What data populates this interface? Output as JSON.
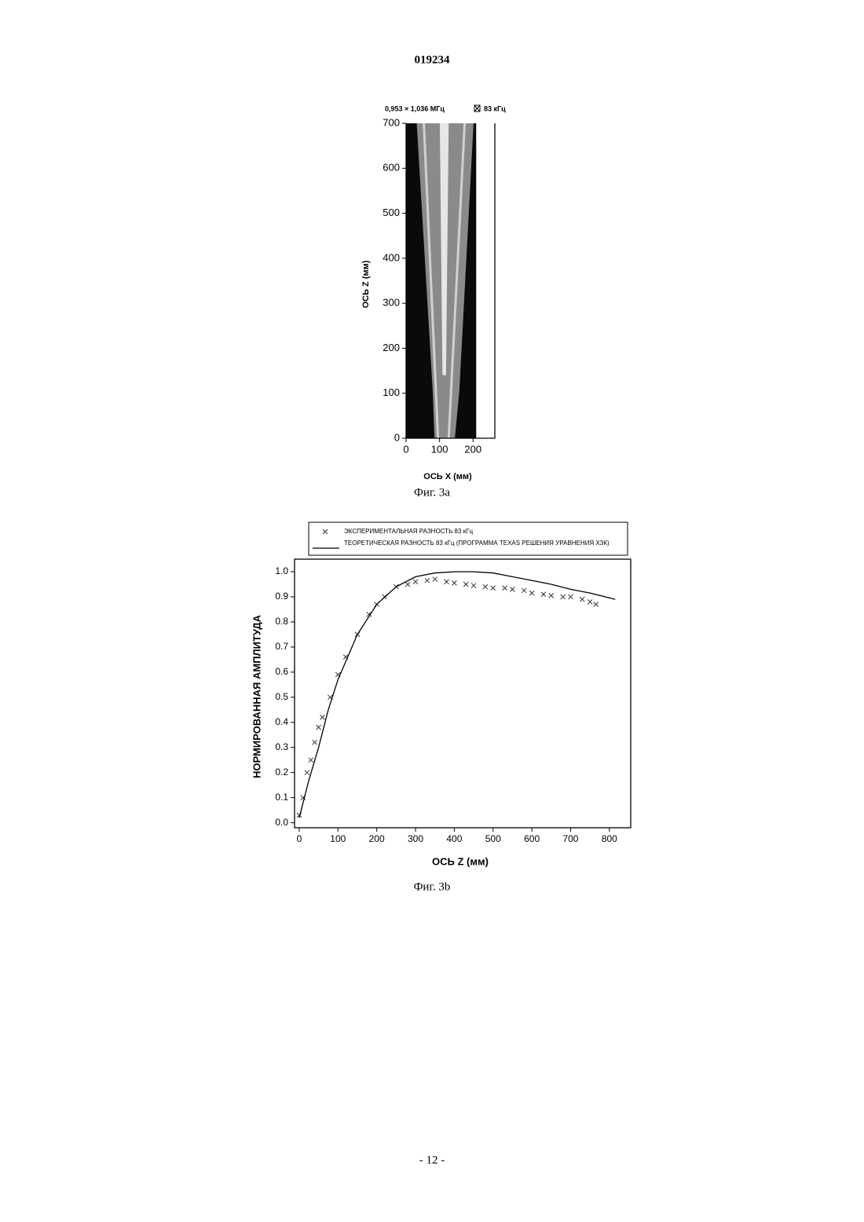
{
  "header": {
    "doc_number": "019234"
  },
  "chart_data": [
    {
      "type": "image",
      "title": "0,953 × 1,036 МГц",
      "legend_label": "83 кГц",
      "xlabel": "ОСЬ X (мм)",
      "ylabel": "ОСЬ Z (мм)",
      "xlim": [
        0,
        265
      ],
      "ylim": [
        0,
        700
      ],
      "xticks": [
        0,
        100,
        200
      ],
      "yticks": [
        0,
        100,
        200,
        300,
        400,
        500,
        600,
        700
      ]
    },
    {
      "type": "scatter",
      "xlabel": "ОСЬ Z (мм)",
      "ylabel": "НОРМИРОВАННАЯ АМПЛИТУДА",
      "xlim": [
        -12,
        855
      ],
      "ylim": [
        -0.02,
        1.05
      ],
      "xticks": [
        0,
        100,
        200,
        300,
        400,
        500,
        600,
        700,
        800
      ],
      "yticks": [
        {
          "value": 0,
          "label": "0.0"
        },
        0.1,
        0.2,
        0.3,
        0.4,
        0.5,
        0.6,
        0.7,
        0.8,
        0.9,
        {
          "value": 1,
          "label": "1.0"
        }
      ],
      "series": [
        {
          "name": "ЭКСПЕРИМЕНТАЛЬНАЯ РАЗНОСТЬ 83 кГц",
          "color": "#333333",
          "marker": "x",
          "x": [
            0,
            10,
            20,
            30,
            40,
            50,
            60,
            80,
            100,
            120,
            150,
            180,
            200,
            220,
            250,
            280,
            300,
            330,
            350,
            380,
            400,
            430,
            450,
            480,
            500,
            530,
            550,
            580,
            600,
            630,
            650,
            680,
            700,
            730,
            750,
            765
          ],
          "values": [
            0.03,
            0.1,
            0.2,
            0.25,
            0.32,
            0.38,
            0.42,
            0.5,
            0.59,
            0.66,
            0.75,
            0.83,
            0.87,
            0.9,
            0.94,
            0.95,
            0.96,
            0.965,
            0.97,
            0.96,
            0.955,
            0.95,
            0.945,
            0.94,
            0.935,
            0.935,
            0.93,
            0.925,
            0.915,
            0.91,
            0.905,
            0.9,
            0.9,
            0.89,
            0.88,
            0.87
          ]
        },
        {
          "name": "ТЕОРЕТИЧЕСКАЯ РАЗНОСТЬ 83 кГц (ПРОГРАММА TEXAS РЕШЕНИЯ УРАВНЕНИЯ ХЗК)",
          "color": "#000000",
          "marker": "line",
          "x": [
            0,
            25,
            50,
            75,
            100,
            150,
            200,
            250,
            300,
            350,
            400,
            450,
            500,
            550,
            600,
            650,
            700,
            750,
            815
          ],
          "values": [
            0.02,
            0.17,
            0.3,
            0.45,
            0.57,
            0.75,
            0.87,
            0.94,
            0.98,
            0.995,
            1.0,
            1.0,
            0.995,
            0.98,
            0.965,
            0.95,
            0.93,
            0.915,
            0.89
          ]
        }
      ]
    }
  ],
  "captions": [
    "Фиг. 3a",
    "Фиг. 3b"
  ],
  "footer": {
    "page": "- 12 -"
  }
}
